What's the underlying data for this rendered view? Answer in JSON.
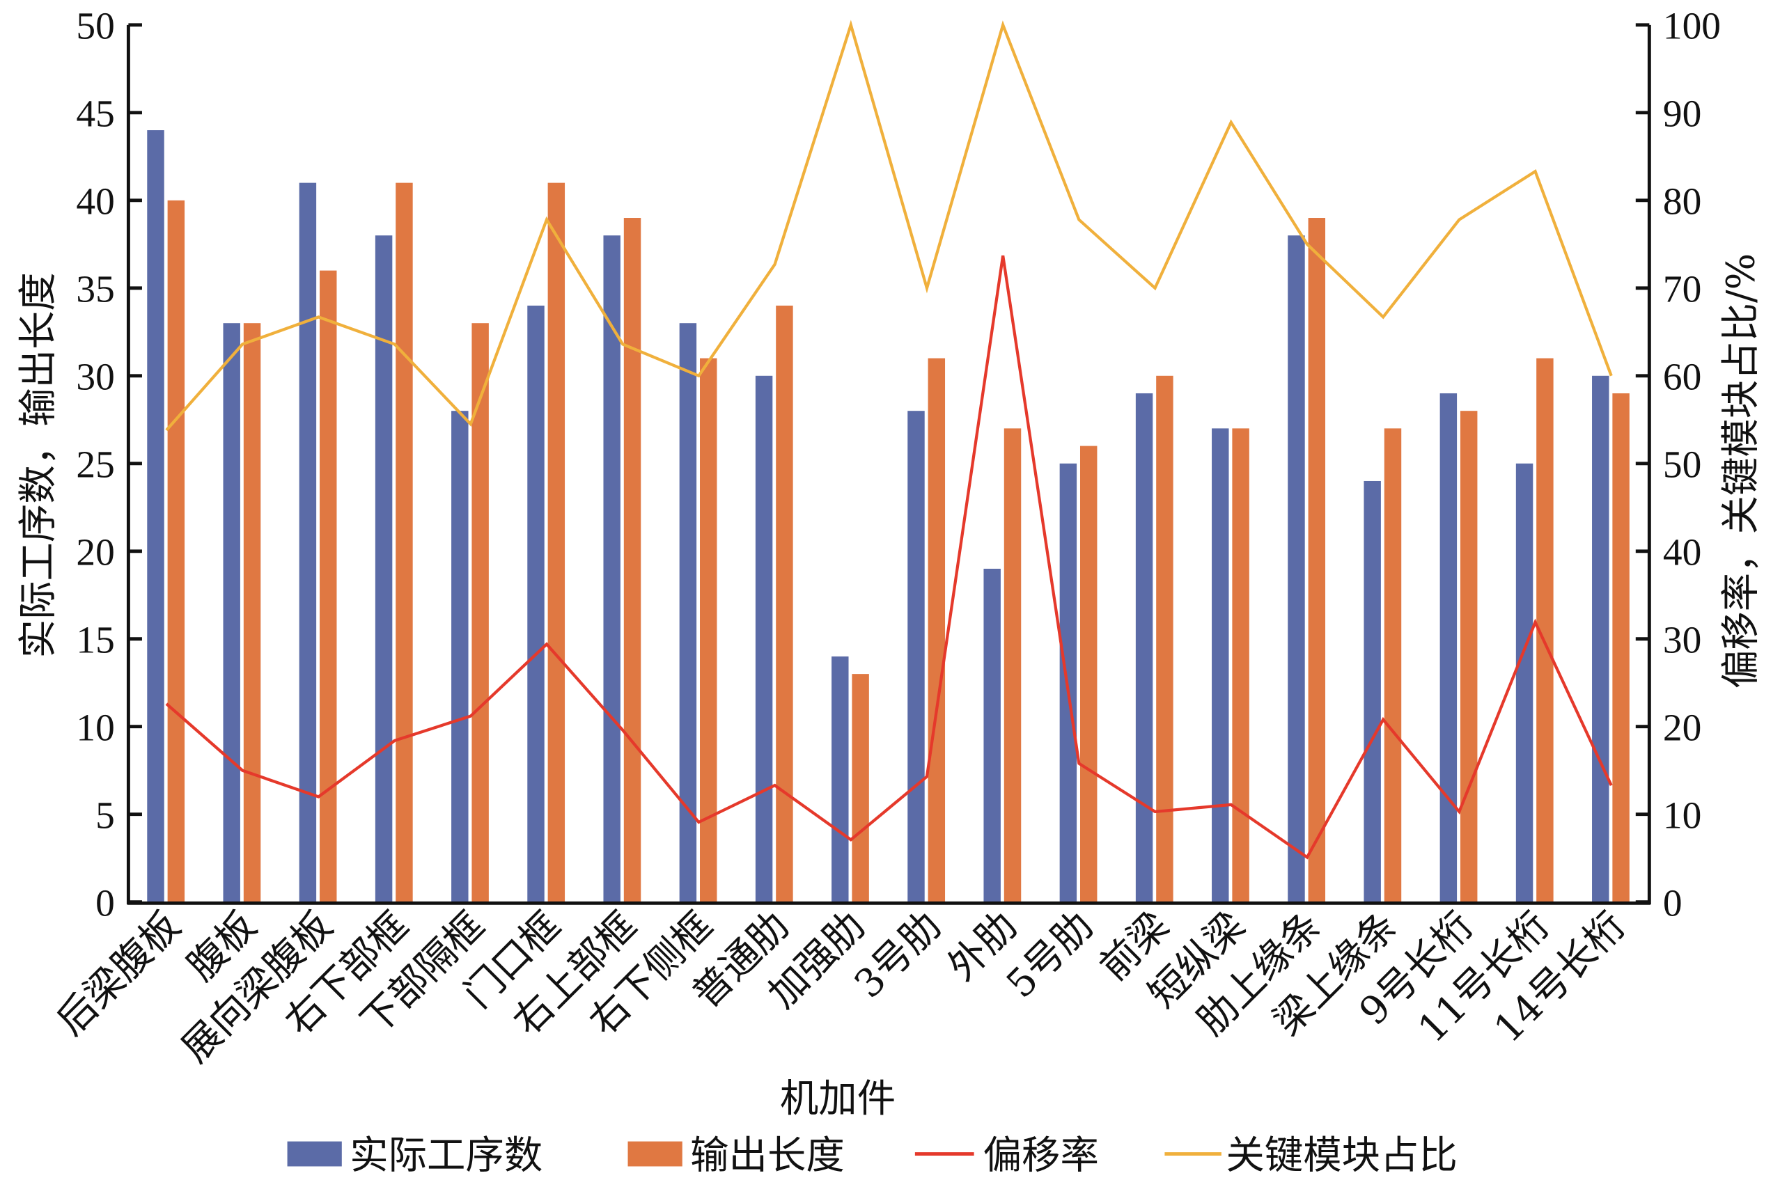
{
  "chart_data": {
    "type": "bar+line",
    "xlabel": "机加件",
    "ylabel_left": "实际工序数，输出长度",
    "ylabel_right": "偏移率，关键模块占比/%",
    "ylim_left": [
      0,
      50
    ],
    "ylim_right": [
      0,
      100
    ],
    "yticks_left": [
      "0",
      "5",
      "10",
      "15",
      "20",
      "25",
      "30",
      "35",
      "40",
      "45",
      "50"
    ],
    "yticks_right": [
      "0",
      "10",
      "20",
      "30",
      "40",
      "50",
      "60",
      "70",
      "80",
      "90",
      "100"
    ],
    "grid": false,
    "legend_position": "bottom",
    "categories": [
      "后梁腹板",
      "腹板",
      "展向梁腹板",
      "右下部框",
      "下部隔框",
      "门口框",
      "右上部框",
      "右下侧框",
      "普通肋",
      "加强肋",
      "3号肋",
      "外肋",
      "5号肋",
      "前梁",
      "短纵梁",
      "肋上缘条",
      "梁上缘条",
      "9号长桁",
      "11号长桁",
      "14号长桁"
    ],
    "series": [
      {
        "name": "实际工序数",
        "type": "bar",
        "axis": "left",
        "color": "#5b6ba7",
        "values": [
          44,
          33,
          41,
          38,
          28,
          34,
          38,
          33,
          30,
          14,
          28,
          19,
          25,
          29,
          27,
          38,
          24,
          29,
          25,
          30
        ]
      },
      {
        "name": "输出长度",
        "type": "bar",
        "axis": "left",
        "color": "#e07842",
        "values": [
          40,
          33,
          36,
          41,
          33,
          41,
          39,
          31,
          34,
          13,
          31,
          27,
          26,
          30,
          27,
          39,
          27,
          28,
          31,
          29
        ]
      },
      {
        "name": "偏移率",
        "type": "line",
        "axis": "right",
        "color": "#e5392b",
        "values": [
          22.6,
          15.0,
          12.0,
          18.4,
          21.2,
          29.4,
          19.6,
          9.1,
          13.3,
          7.1,
          14.3,
          73.7,
          15.8,
          10.3,
          11.1,
          5.1,
          20.8,
          10.3,
          31.9,
          13.3
        ]
      },
      {
        "name": "关键模块占比",
        "type": "line",
        "axis": "right",
        "color": "#f0b03c",
        "values": [
          53.8,
          63.6,
          66.7,
          63.6,
          54.5,
          77.8,
          63.6,
          60.0,
          72.7,
          100,
          70.0,
          100,
          77.8,
          70.0,
          88.9,
          75.0,
          66.7,
          77.8,
          83.3,
          60.0
        ]
      }
    ]
  }
}
